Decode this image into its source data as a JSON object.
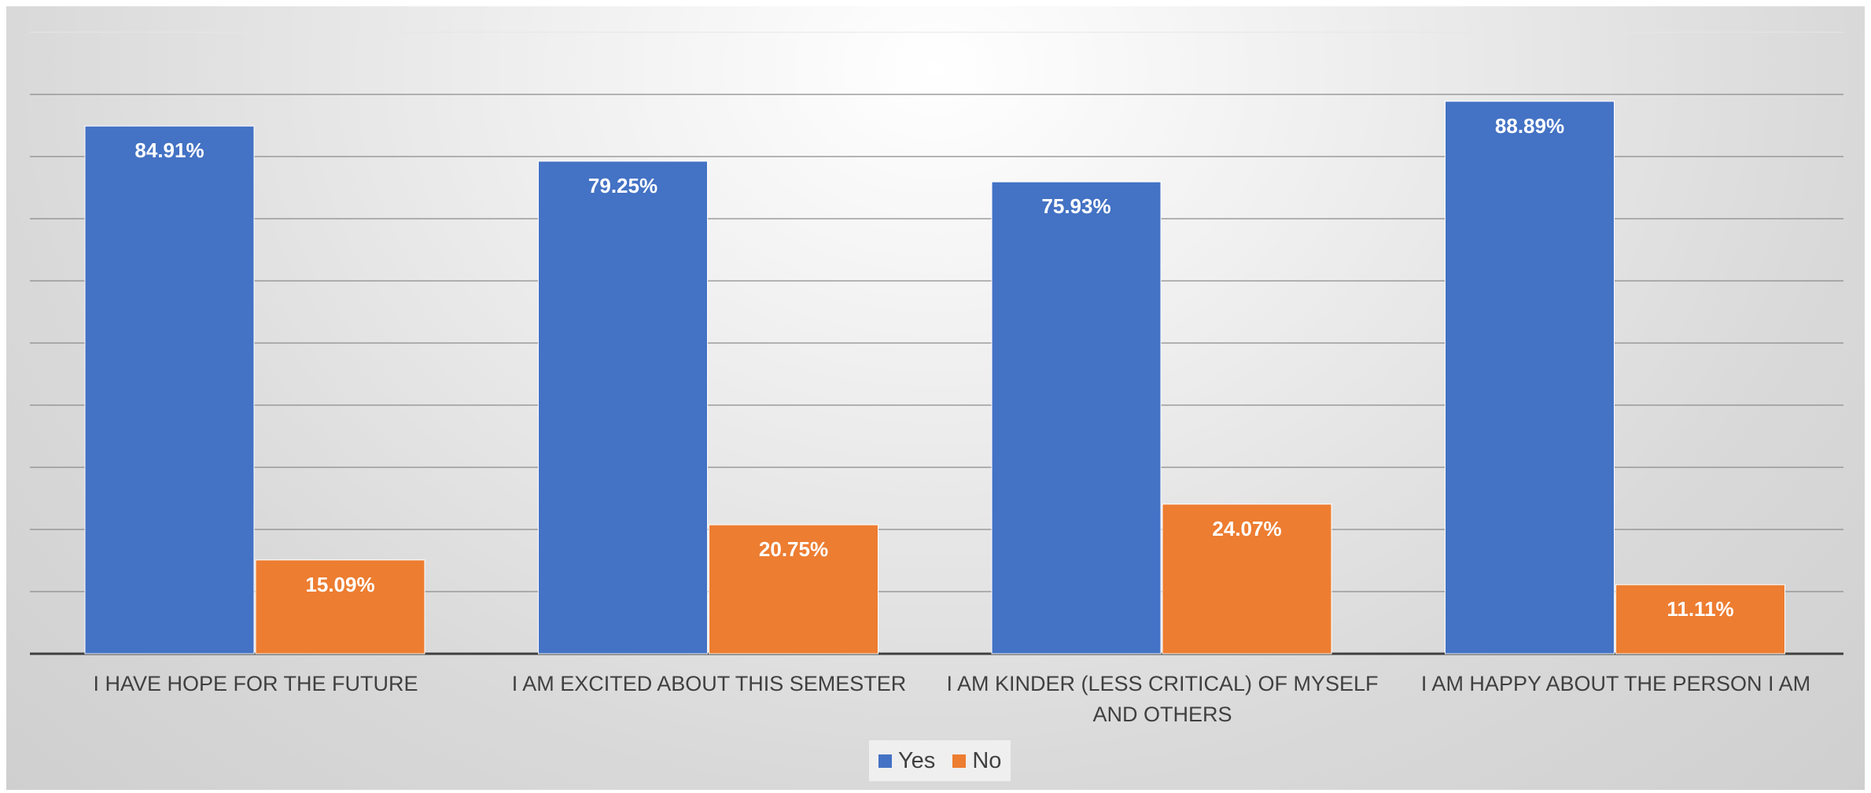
{
  "chart_data": {
    "type": "bar",
    "title": "",
    "xlabel": "",
    "ylabel": "",
    "ylim": [
      0,
      100
    ],
    "grid": true,
    "legend_position": "bottom",
    "categories": [
      [
        "I HAVE HOPE FOR THE FUTURE"
      ],
      [
        "I AM EXCITED ABOUT THIS SEMESTER"
      ],
      [
        "I AM KINDER (LESS CRITICAL) OF MYSELF",
        "AND OTHERS"
      ],
      [
        "I AM HAPPY ABOUT THE PERSON I AM"
      ]
    ],
    "series": [
      {
        "name": "Yes",
        "color": "#4472C4",
        "values": [
          84.91,
          79.25,
          75.93,
          88.89
        ],
        "labels": [
          "84.91%",
          "79.25%",
          "75.93%",
          "88.89%"
        ]
      },
      {
        "name": "No",
        "color": "#ED7D31",
        "values": [
          15.09,
          20.75,
          24.07,
          11.11
        ],
        "labels": [
          "15.09%",
          "20.75%",
          "24.07%",
          "11.11%"
        ]
      }
    ]
  }
}
